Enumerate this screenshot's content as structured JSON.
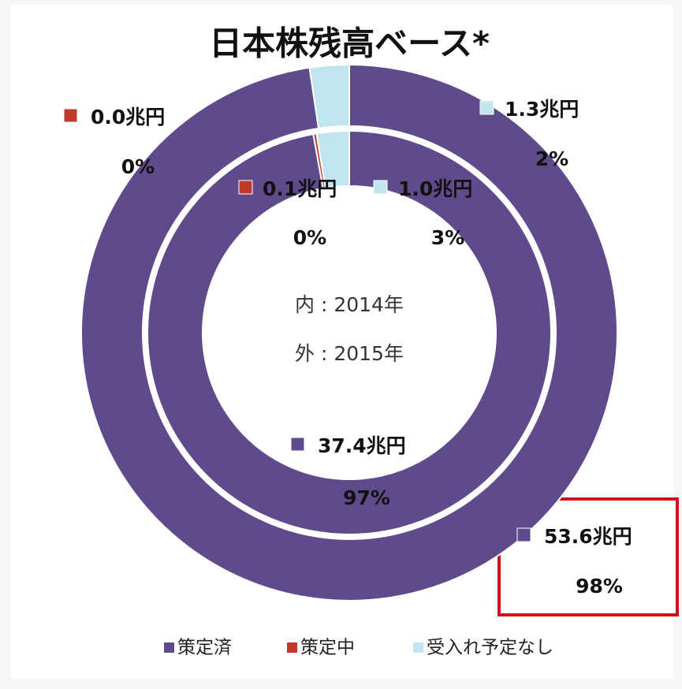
{
  "chart_data": {
    "type": "donut",
    "title": "日本株残高ベース*",
    "categories": [
      "策定済",
      "策定中",
      "受入れ予定なし"
    ],
    "colors": [
      "#5f4b8b",
      "#c0392b",
      "#bfe6ef"
    ],
    "rings": [
      {
        "label": "内 : 2014年",
        "values": [
          37.4,
          0.1,
          1.0
        ],
        "value_labels": [
          "37.4兆円",
          "0.1兆円",
          "1.0兆円"
        ],
        "percents": [
          97,
          0,
          3
        ],
        "percent_labels": [
          "97%",
          "0%",
          "3%"
        ]
      },
      {
        "label": "外 : 2015年",
        "values": [
          53.6,
          0.0,
          1.3
        ],
        "value_labels": [
          "53.6兆円",
          "0.0兆円",
          "1.3兆円"
        ],
        "percents": [
          98,
          0,
          2
        ],
        "percent_labels": [
          "98%",
          "0%",
          "2%"
        ]
      }
    ]
  }
}
